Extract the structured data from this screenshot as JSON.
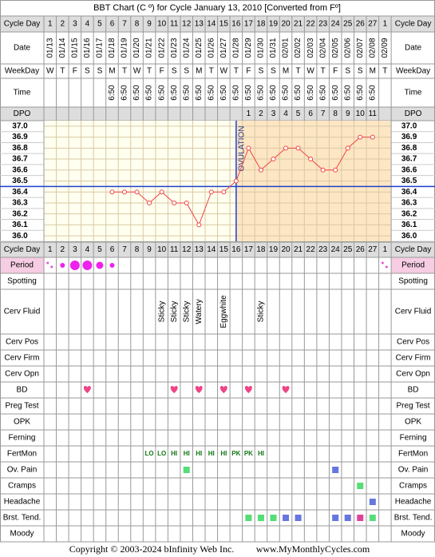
{
  "title": "BBT Chart (C º) for Cycle January 13, 2010  [Converted from Fº]",
  "footer": {
    "copyright": "Copyright © 2003-2024 bInfinity Web Inc.",
    "site": "www.MyMonthlyCycles.com"
  },
  "row_labels": {
    "cycle_day": "Cycle Day",
    "date": "Date",
    "weekday": "WeekDay",
    "time": "Time",
    "dpo": "DPO",
    "period": "Period",
    "spotting": "Spotting",
    "cerv_fluid": "Cerv Fluid",
    "cerv_pos": "Cerv Pos",
    "cerv_firm": "Cerv Firm",
    "cerv_opn": "Cerv Opn",
    "bd": "BD",
    "preg_test": "Preg Test",
    "opk": "OPK",
    "ferning": "Ferning",
    "fertmon": "FertMon",
    "ov_pain": "Ov. Pain",
    "cramps": "Cramps",
    "headache": "Headache",
    "brst_tend": "Brst. Tend.",
    "moody": "Moody"
  },
  "chart_data": {
    "type": "line",
    "categories": [
      1,
      2,
      3,
      4,
      5,
      6,
      7,
      8,
      9,
      10,
      11,
      12,
      13,
      14,
      15,
      16,
      17,
      18,
      19,
      20,
      21,
      22,
      23,
      24,
      25,
      26,
      27,
      1
    ],
    "dates": [
      "01/13",
      "01/14",
      "01/15",
      "01/16",
      "01/17",
      "01/18",
      "01/19",
      "01/20",
      "01/21",
      "01/22",
      "01/23",
      "01/24",
      "01/25",
      "01/26",
      "01/27",
      "01/28",
      "01/29",
      "01/30",
      "01/31",
      "02/01",
      "02/02",
      "02/03",
      "02/04",
      "02/05",
      "02/06",
      "02/07",
      "02/08",
      "02/09"
    ],
    "weekdays": [
      "W",
      "T",
      "F",
      "S",
      "S",
      "M",
      "T",
      "W",
      "T",
      "F",
      "S",
      "S",
      "M",
      "T",
      "W",
      "T",
      "F",
      "S",
      "S",
      "M",
      "T",
      "W",
      "T",
      "F",
      "S",
      "S",
      "M",
      "T"
    ],
    "times": [
      null,
      null,
      null,
      null,
      null,
      "6:50",
      "6:50",
      "6:50",
      "6:50",
      "6:50",
      "6:50",
      "6:50",
      "6:50",
      "6:50",
      "6:50",
      "6:50",
      "6:50",
      "6:50",
      "6:50",
      "6:50",
      "6:50",
      "6:50",
      "6:50",
      "6:50",
      "6:50",
      "6:50",
      "6:50",
      null
    ],
    "dpo": [
      null,
      null,
      null,
      null,
      null,
      null,
      null,
      null,
      null,
      null,
      null,
      null,
      null,
      null,
      null,
      null,
      1,
      2,
      3,
      4,
      5,
      6,
      7,
      8,
      9,
      10,
      11,
      null
    ],
    "values": [
      null,
      null,
      null,
      null,
      null,
      36.4,
      36.4,
      36.4,
      36.3,
      36.4,
      36.3,
      36.3,
      36.1,
      36.4,
      36.4,
      36.5,
      36.8,
      36.6,
      36.7,
      36.8,
      36.8,
      36.7,
      36.6,
      36.6,
      36.8,
      36.9,
      36.9,
      null
    ],
    "color": "#ee4444",
    "ylim": [
      35.95,
      37.05
    ],
    "yticks": [
      {
        "value": 37.0,
        "label": "37.0"
      },
      36.9,
      36.8,
      36.7,
      36.6,
      36.5,
      36.4,
      36.3,
      36.2,
      36.1,
      {
        "value": 36.0,
        "label": "36.0"
      }
    ],
    "grid": true,
    "coverline": 36.45,
    "ovulation_day": 16,
    "ovulation_label": "OVULATION"
  },
  "period": [
    1,
    2,
    4,
    4,
    3,
    2,
    null,
    null,
    null,
    null,
    null,
    null,
    null,
    null,
    null,
    null,
    null,
    null,
    null,
    null,
    null,
    null,
    null,
    null,
    null,
    null,
    null,
    1
  ],
  "cerv_fluid": [
    null,
    null,
    null,
    null,
    null,
    null,
    null,
    null,
    null,
    "Sticky",
    "Sticky",
    "Sticky",
    "Watery",
    null,
    "Eggwhite",
    null,
    null,
    "Sticky",
    null,
    null,
    null,
    null,
    null,
    null,
    null,
    null,
    null,
    null
  ],
  "fertmon": [
    null,
    null,
    null,
    null,
    null,
    null,
    null,
    null,
    "LO",
    "LO",
    "HI",
    "HI",
    "HI",
    "HI",
    "HI",
    "PK",
    "PK",
    "HI",
    null,
    null,
    null,
    null,
    null,
    null,
    null,
    null,
    null,
    null
  ],
  "bd_days": [
    4,
    11,
    13,
    15,
    17,
    20
  ],
  "symptoms": {
    "ov_pain": [
      {
        "day": 12,
        "color": "#55dd77"
      },
      {
        "day": 24,
        "color": "#6677dd"
      }
    ],
    "cramps": [
      {
        "day": 26,
        "color": "#55dd77"
      }
    ],
    "headache": [
      {
        "day": 27,
        "color": "#6677dd"
      }
    ],
    "brst_tend": [
      {
        "day": 17,
        "color": "#55dd77"
      },
      {
        "day": 18,
        "color": "#55dd77"
      },
      {
        "day": 19,
        "color": "#55dd77"
      },
      {
        "day": 20,
        "color": "#6677dd"
      },
      {
        "day": 21,
        "color": "#6677dd"
      },
      {
        "day": 24,
        "color": "#6677dd"
      },
      {
        "day": 25,
        "color": "#6677dd"
      },
      {
        "day": 26,
        "color": "#dd4499"
      },
      {
        "day": 27,
        "color": "#55dd77"
      }
    ]
  }
}
